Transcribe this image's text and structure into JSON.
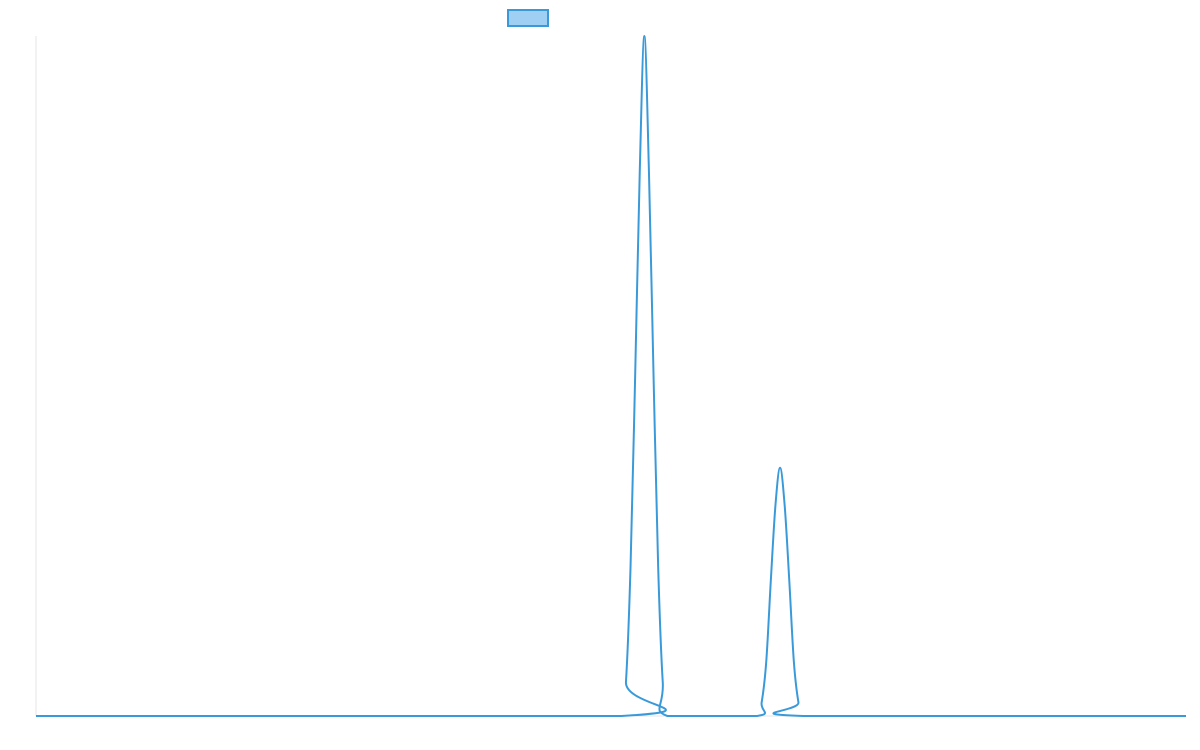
{
  "colors": {
    "series_stroke": "#3a9ad9",
    "legend_fill": "#9fd0f3",
    "axis": "#e5e5e5",
    "background": "#ffffff"
  },
  "chart_data": {
    "type": "line",
    "title": "",
    "xlabel": "",
    "ylabel": "",
    "grid": false,
    "legend": {
      "position": "top-center",
      "entries": [
        {
          "name": ""
        }
      ]
    },
    "xlim": [
      0,
      100
    ],
    "ylim": [
      0,
      100
    ],
    "series": [
      {
        "name": "",
        "x": [
          0,
          50.9,
          51.3,
          51.7,
          52.1,
          52.5,
          52.9,
          53.3,
          53.7,
          54.1,
          54.5,
          54.9,
          62.7,
          63.1,
          63.5,
          63.9,
          64.3,
          64.7,
          65.1,
          65.5,
          65.9,
          66.3,
          66.7,
          100
        ],
        "y": [
          0,
          0,
          5,
          22,
          50,
          80,
          100,
          80,
          50,
          22,
          5,
          0,
          0,
          2,
          8,
          20,
          31,
          36.5,
          31,
          20,
          8,
          2,
          0,
          0
        ]
      }
    ]
  }
}
